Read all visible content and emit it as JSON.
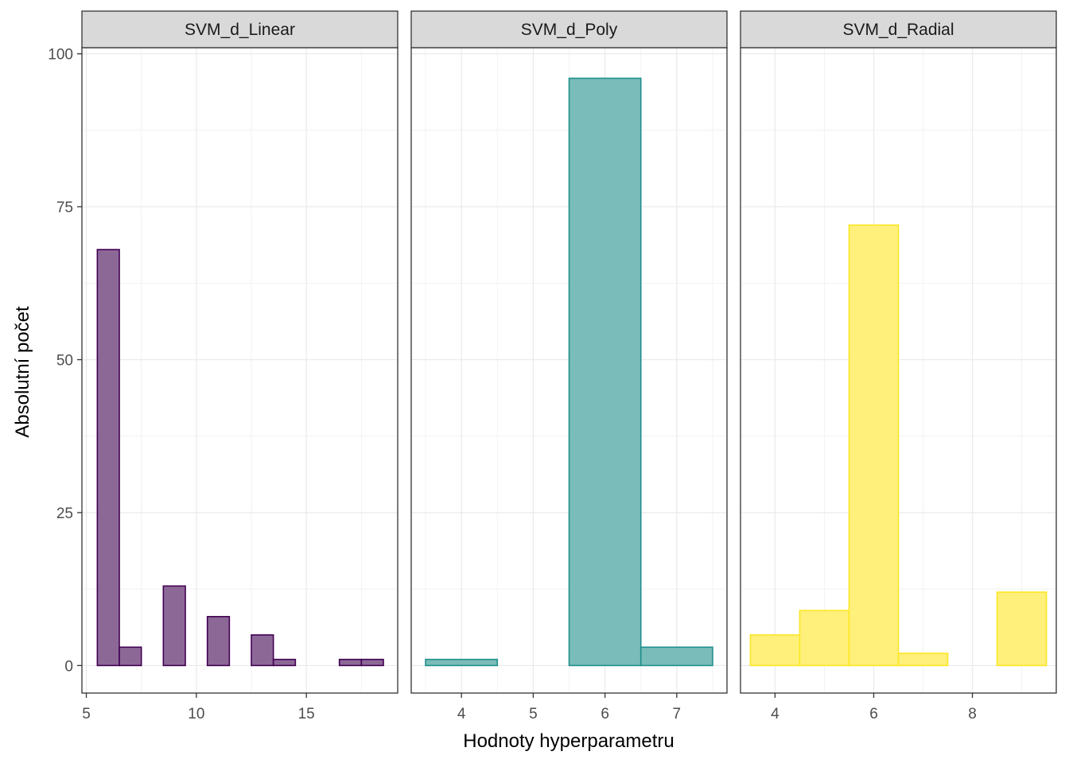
{
  "chart_data": {
    "type": "histogram",
    "xlabel": "Hodnoty hyperparametru",
    "ylabel": "Absolutní počet",
    "ylim": [
      -4.5,
      101
    ],
    "yticks": [
      0,
      25,
      50,
      75,
      100
    ],
    "grid": true,
    "panels": [
      {
        "title": "SVM_d_Linear",
        "color": "#440154",
        "fill": "#8C6897",
        "xlim": [
          4.8,
          19.15
        ],
        "xticks": [
          5,
          10,
          15
        ],
        "bin_width": 1,
        "bins": [
          {
            "x": 6,
            "count": 68
          },
          {
            "x": 7,
            "count": 3
          },
          {
            "x": 8,
            "count": 0
          },
          {
            "x": 9,
            "count": 13
          },
          {
            "x": 10,
            "count": 0
          },
          {
            "x": 11,
            "count": 8
          },
          {
            "x": 12,
            "count": 0
          },
          {
            "x": 13,
            "count": 5
          },
          {
            "x": 14,
            "count": 1
          },
          {
            "x": 15,
            "count": 0
          },
          {
            "x": 16,
            "count": 0
          },
          {
            "x": 17,
            "count": 1
          },
          {
            "x": 18,
            "count": 1
          }
        ]
      },
      {
        "title": "SVM_d_Poly",
        "color": "#21908C",
        "fill": "#7ABCB9",
        "xlim": [
          3.3,
          7.7
        ],
        "xticks": [
          4,
          5,
          6,
          7
        ],
        "bin_width": 1,
        "bins": [
          {
            "x": 4,
            "count": 1
          },
          {
            "x": 5,
            "count": 0
          },
          {
            "x": 6,
            "count": 96
          },
          {
            "x": 7,
            "count": 3
          }
        ]
      },
      {
        "title": "SVM_d_Radial",
        "color": "#FDE725",
        "fill": "#FEF07A",
        "xlim": [
          3.3,
          9.7
        ],
        "xticks": [
          4,
          6,
          8
        ],
        "bin_width": 1,
        "bins": [
          {
            "x": 4,
            "count": 5
          },
          {
            "x": 5,
            "count": 9
          },
          {
            "x": 6,
            "count": 72
          },
          {
            "x": 7,
            "count": 2
          },
          {
            "x": 8,
            "count": 0
          },
          {
            "x": 9,
            "count": 12
          }
        ]
      }
    ]
  }
}
